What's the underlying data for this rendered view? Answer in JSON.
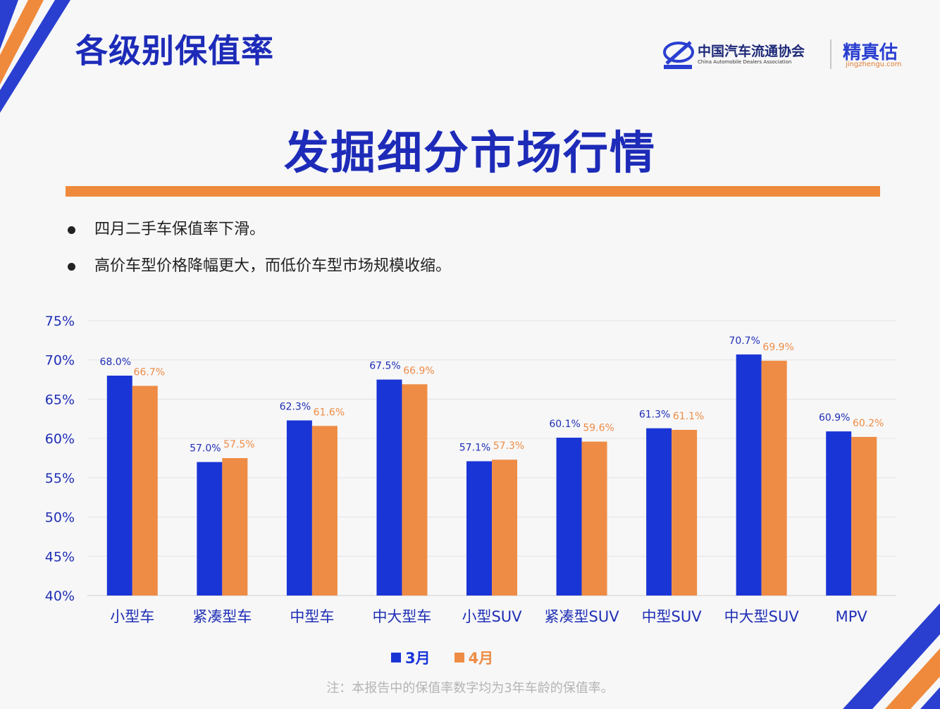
{
  "header": {
    "title": "各级别保值率"
  },
  "logo": {
    "assoc_cn": "中国汽车流通协会",
    "assoc_en": "China Automobile Dealers Association",
    "brand": "精真估",
    "url": "jingzhengu.com"
  },
  "subtitle": "发掘细分市场行情",
  "bullets": [
    "四月二手车保值率下滑。",
    "高价车型价格降幅更大，而低价车型市场规模收缩。"
  ],
  "colors": {
    "march": "#1a35d6",
    "april": "#ee8c45",
    "accent_orange": "#ef8a3c",
    "title_blue": "#1d2bb8"
  },
  "chart_data": {
    "type": "bar",
    "categories": [
      "小型车",
      "紧凑型车",
      "中型车",
      "中大型车",
      "小型SUV",
      "紧凑型SUV",
      "中型SUV",
      "中大型SUV",
      "MPV"
    ],
    "series": [
      {
        "name": "3月",
        "values": [
          68.0,
          57.0,
          62.3,
          67.5,
          57.1,
          60.1,
          61.3,
          70.7,
          60.9
        ]
      },
      {
        "name": "4月",
        "values": [
          66.7,
          57.5,
          61.6,
          66.9,
          57.3,
          59.6,
          61.1,
          69.9,
          60.2
        ]
      }
    ],
    "ylim": [
      40,
      75
    ],
    "yticks": [
      "40%",
      "45%",
      "50%",
      "55%",
      "60%",
      "65%",
      "70%",
      "75%"
    ],
    "value_labels": [
      [
        "68.0%",
        "57.0%",
        "62.3%",
        "67.5%",
        "57.1%",
        "60.1%",
        "61.3%",
        "70.7%",
        "60.9%"
      ],
      [
        "66.7%",
        "57.5%",
        "61.6%",
        "66.9%",
        "57.3%",
        "59.6%",
        "61.1%",
        "69.9%",
        "60.2%"
      ]
    ],
    "grid": true,
    "legend_position": "bottom-center"
  },
  "footnote": "注：本报告中的保值率数字均为3年车龄的保值率。"
}
